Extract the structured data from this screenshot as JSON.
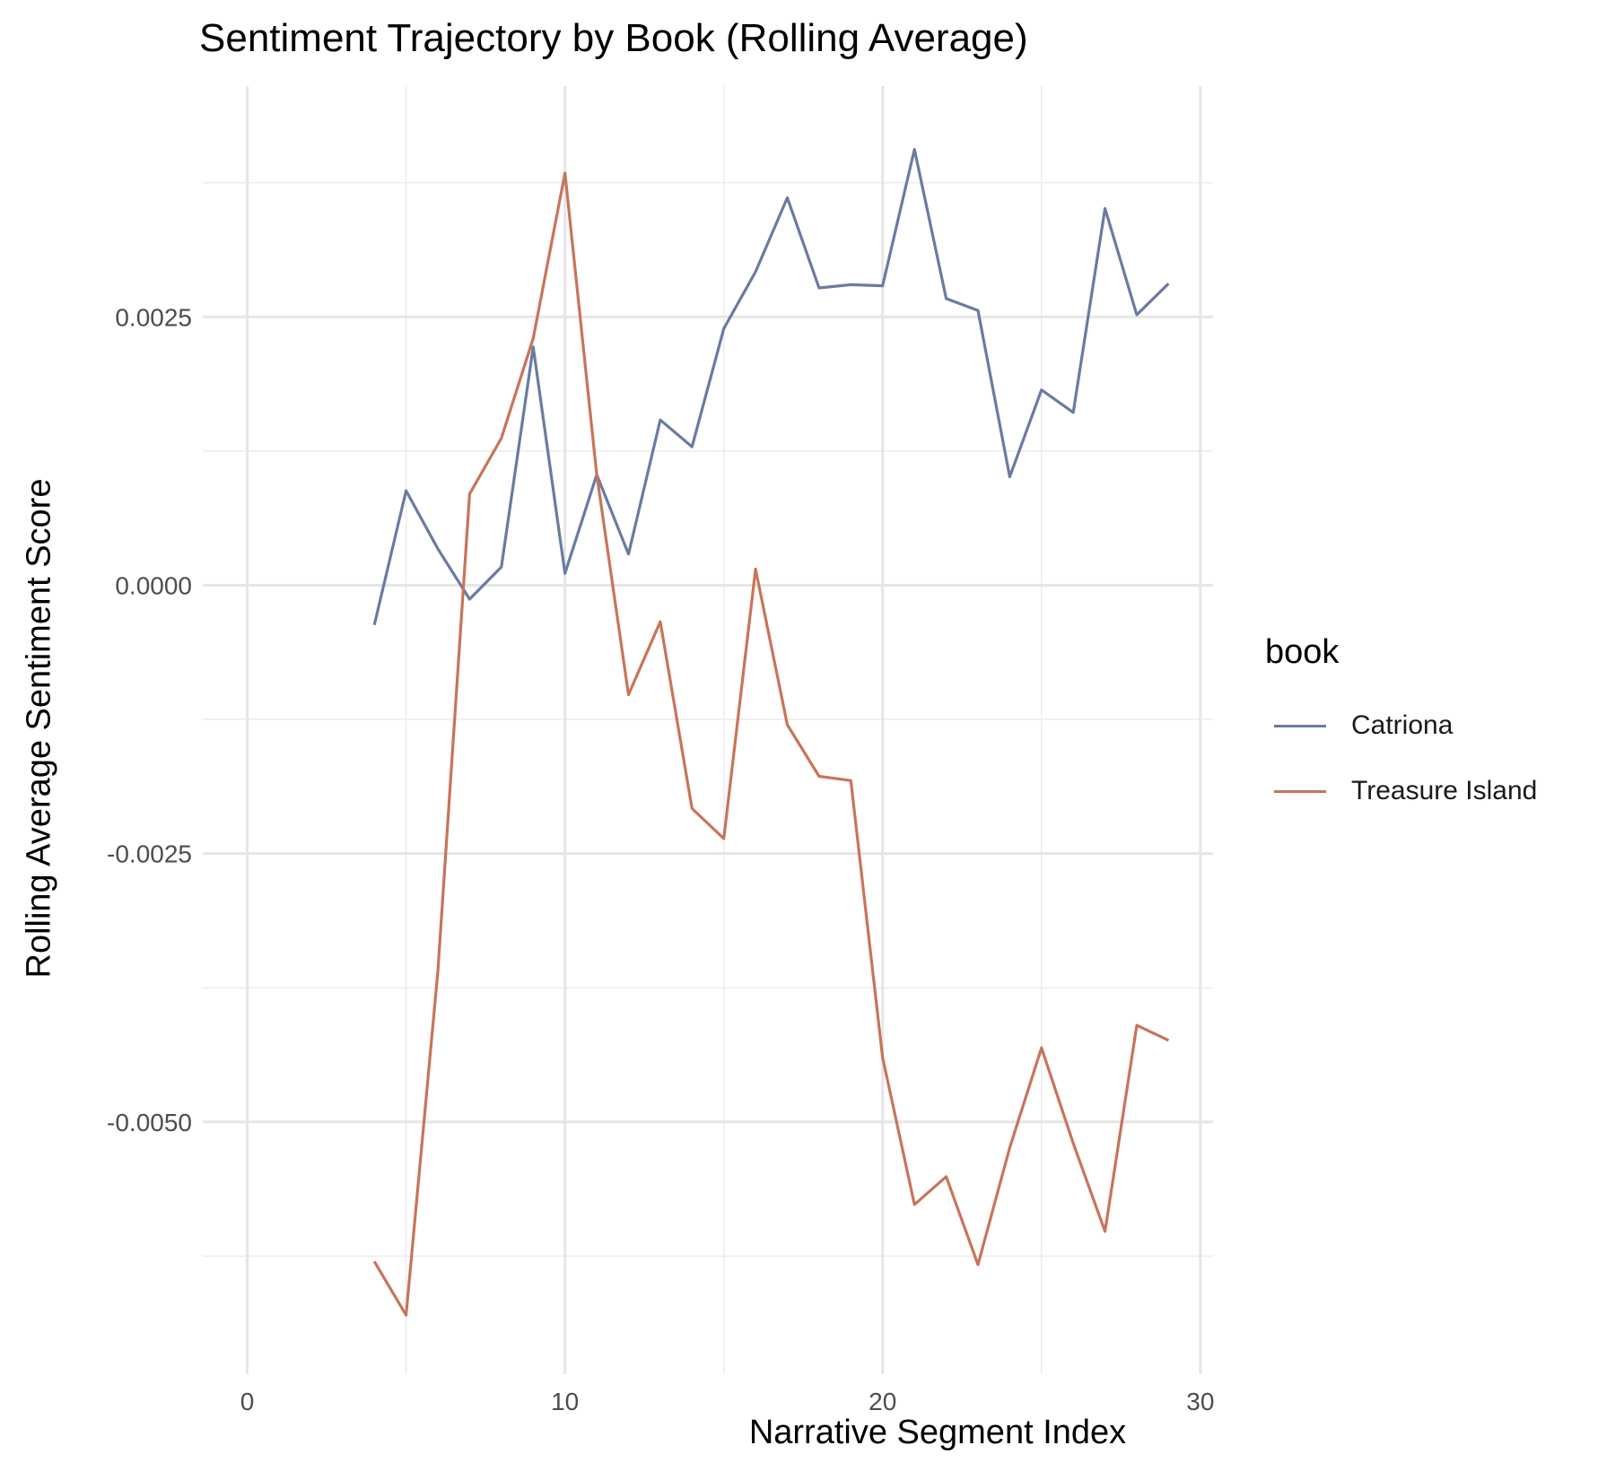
{
  "chart_data": {
    "type": "line",
    "title": "Sentiment Trajectory by Book (Rolling Average)",
    "xlabel": "Narrative Segment Index",
    "ylabel": "Rolling Average Sentiment Score",
    "xlim": [
      -1.4,
      30.4
    ],
    "ylim": [
      -0.00735,
      0.00465
    ],
    "x_ticks": [
      0,
      10,
      20,
      30
    ],
    "x_tick_labels": [
      "0",
      "10",
      "20",
      "30"
    ],
    "y_ticks": [
      -0.005,
      -0.0025,
      0,
      0.0025
    ],
    "y_tick_labels": [
      "-0.0050",
      "-0.0025",
      "0.0000",
      "0.0025"
    ],
    "grid": true,
    "legend": {
      "title": "book",
      "position": "right"
    },
    "series": [
      {
        "name": "Catriona",
        "color": "#6a7ba2",
        "x": [
          4,
          5,
          6,
          7,
          8,
          9,
          10,
          11,
          12,
          13,
          14,
          15,
          16,
          17,
          18,
          19,
          20,
          21,
          22,
          23,
          24,
          25,
          26,
          27,
          28,
          29
        ],
        "y": [
          -0.00037,
          0.00088,
          0.00034,
          -0.00013,
          0.00017,
          0.00222,
          0.00011,
          0.00103,
          0.00029,
          0.00154,
          0.00129,
          0.00239,
          0.00292,
          0.00361,
          0.00277,
          0.0028,
          0.00279,
          0.00406,
          0.00267,
          0.00256,
          0.00101,
          0.00182,
          0.00161,
          0.00351,
          0.00252,
          0.00281
        ]
      },
      {
        "name": "Treasure Island",
        "color": "#c87459",
        "x": [
          4,
          5,
          6,
          7,
          8,
          9,
          10,
          11,
          12,
          13,
          14,
          15,
          16,
          17,
          18,
          19,
          20,
          21,
          22,
          23,
          24,
          25,
          26,
          27,
          28,
          29
        ],
        "y": [
          -0.0063,
          -0.0068,
          -0.0036,
          0.00085,
          0.00137,
          0.0023,
          0.00384,
          0.00103,
          -0.00102,
          -0.00034,
          -0.00208,
          -0.00236,
          0.00015,
          -0.0013,
          -0.00178,
          -0.00182,
          -0.0044,
          -0.00577,
          -0.00551,
          -0.00633,
          -0.00524,
          -0.00431,
          -0.0052,
          -0.00602,
          -0.0041,
          -0.00424
        ]
      }
    ]
  }
}
